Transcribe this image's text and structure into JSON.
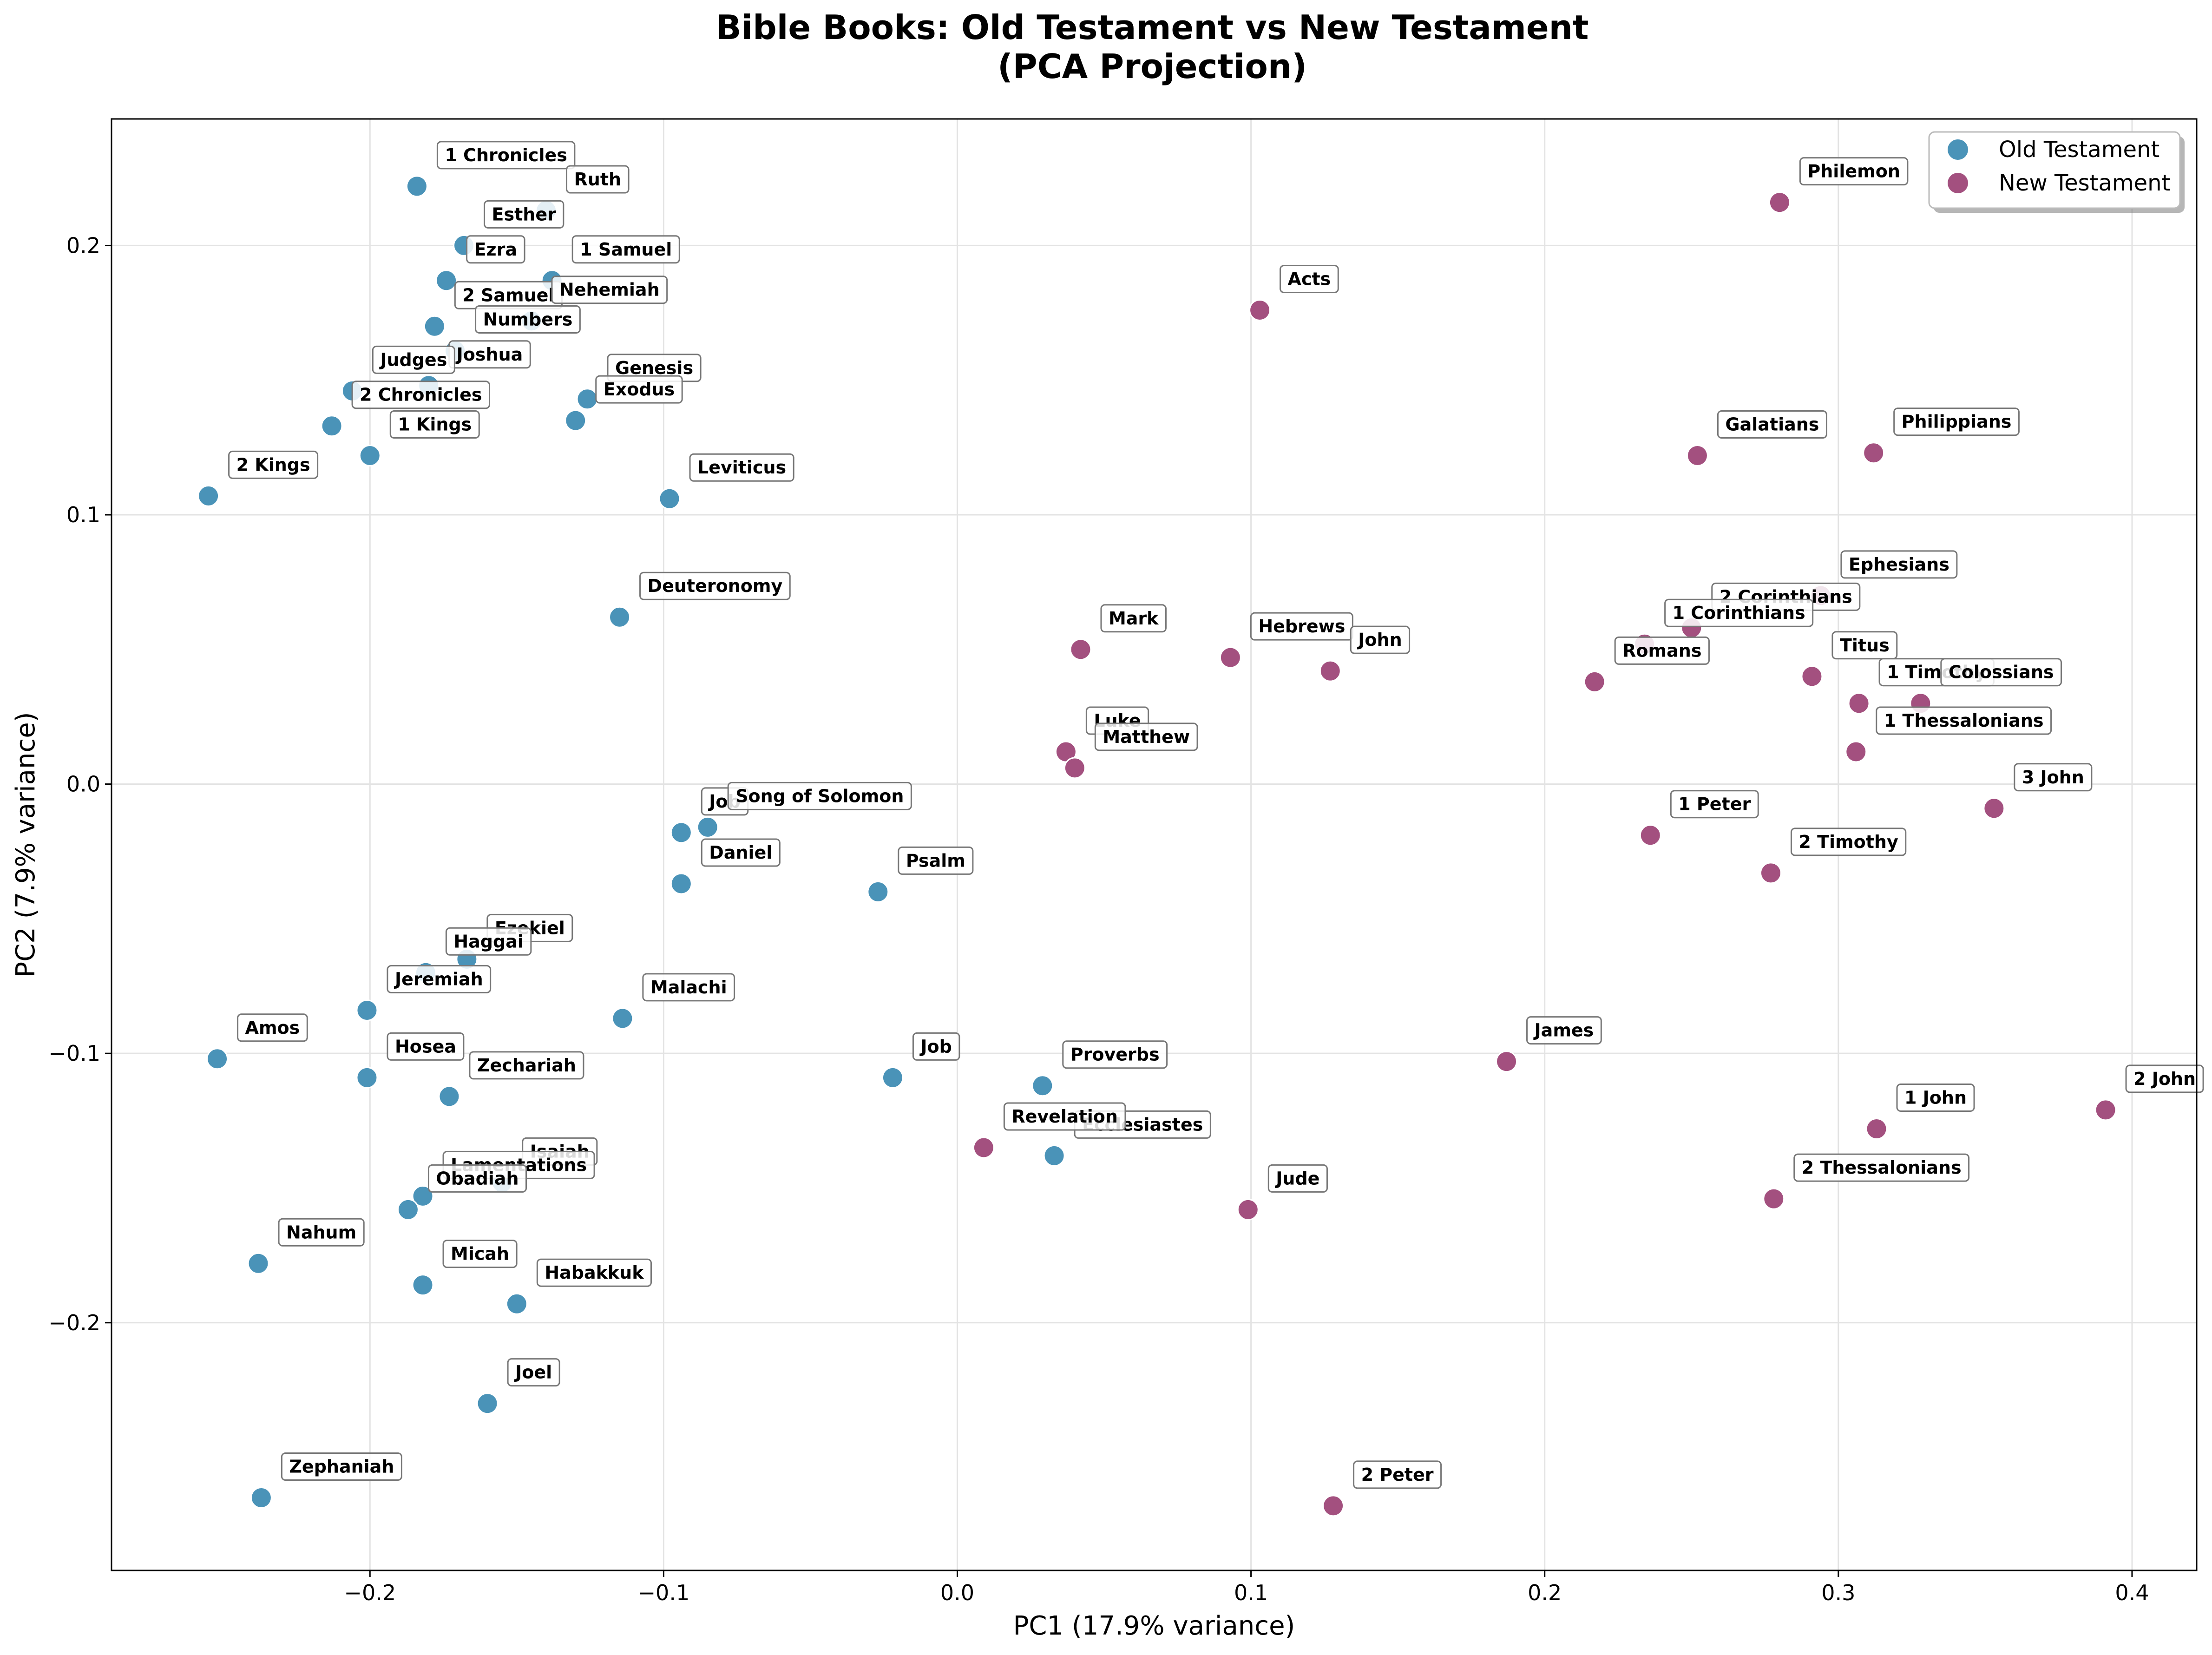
{
  "chart_data": {
    "type": "scatter",
    "title": "Bible Books: Old Testament vs New Testament",
    "subtitle": "(PCA Projection)",
    "xlabel": "PC1 (17.9% variance)",
    "ylabel": "PC2 (7.9% variance)",
    "xlim": [
      -0.288,
      0.422
    ],
    "ylim": [
      -0.292,
      0.247
    ],
    "x_ticks": [
      -0.2,
      -0.1,
      0.0,
      0.1,
      0.2,
      0.3,
      0.4
    ],
    "x_tick_labels": [
      "−0.2",
      "−0.1",
      "0.0",
      "0.1",
      "0.2",
      "0.3",
      "0.4"
    ],
    "y_ticks": [
      -0.2,
      -0.1,
      0.0,
      0.1,
      0.2
    ],
    "y_tick_labels": [
      "−0.2",
      "−0.1",
      "0.0",
      "0.1",
      "0.2"
    ],
    "grid": true,
    "legend_position": "top-right",
    "series": [
      {
        "name": "Old Testament",
        "color": "#4a93b8",
        "points": [
          {
            "label": "1 Chronicles",
            "x": -0.184,
            "y": 0.222
          },
          {
            "label": "Ruth",
            "x": -0.14,
            "y": 0.213
          },
          {
            "label": "Esther",
            "x": -0.168,
            "y": 0.2
          },
          {
            "label": "Ezra",
            "x": -0.174,
            "y": 0.187
          },
          {
            "label": "1 Samuel",
            "x": -0.138,
            "y": 0.187
          },
          {
            "label": "2 Samuel",
            "x": -0.178,
            "y": 0.17
          },
          {
            "label": "Nehemiah",
            "x": -0.145,
            "y": 0.172
          },
          {
            "label": "Numbers",
            "x": -0.171,
            "y": 0.161
          },
          {
            "label": "Joshua",
            "x": -0.18,
            "y": 0.148
          },
          {
            "label": "Judges",
            "x": -0.206,
            "y": 0.146
          },
          {
            "label": "Genesis",
            "x": -0.126,
            "y": 0.143
          },
          {
            "label": "2 Chronicles",
            "x": -0.213,
            "y": 0.133
          },
          {
            "label": "Exodus",
            "x": -0.13,
            "y": 0.135
          },
          {
            "label": "1 Kings",
            "x": -0.2,
            "y": 0.122
          },
          {
            "label": "2 Kings",
            "x": -0.255,
            "y": 0.107
          },
          {
            "label": "Leviticus",
            "x": -0.098,
            "y": 0.106
          },
          {
            "label": "Deuteronomy",
            "x": -0.115,
            "y": 0.062
          },
          {
            "label": "Job",
            "x": -0.094,
            "y": -0.018
          },
          {
            "label": "Song of Solomon",
            "x": -0.085,
            "y": -0.016
          },
          {
            "label": "Daniel",
            "x": -0.094,
            "y": -0.037
          },
          {
            "label": "Psalm",
            "x": -0.027,
            "y": -0.04
          },
          {
            "label": "Ezekiel",
            "x": -0.167,
            "y": -0.065
          },
          {
            "label": "Haggai",
            "x": -0.181,
            "y": -0.07
          },
          {
            "label": "Jeremiah",
            "x": -0.201,
            "y": -0.084
          },
          {
            "label": "Malachi",
            "x": -0.114,
            "y": -0.087
          },
          {
            "label": "Amos",
            "x": -0.252,
            "y": -0.102
          },
          {
            "label": "Hosea",
            "x": -0.201,
            "y": -0.109
          },
          {
            "label": "Zechariah",
            "x": -0.173,
            "y": -0.116
          },
          {
            "label": "Job",
            "x": -0.022,
            "y": -0.109
          },
          {
            "label": "Proverbs",
            "x": 0.029,
            "y": -0.112
          },
          {
            "label": "Ecclesiastes",
            "x": 0.033,
            "y": -0.138
          },
          {
            "label": "Isaiah",
            "x": -0.155,
            "y": -0.148
          },
          {
            "label": "Lamentations",
            "x": -0.182,
            "y": -0.153
          },
          {
            "label": "Obadiah",
            "x": -0.187,
            "y": -0.158
          },
          {
            "label": "Nahum",
            "x": -0.238,
            "y": -0.178
          },
          {
            "label": "Micah",
            "x": -0.182,
            "y": -0.186
          },
          {
            "label": "Habakkuk",
            "x": -0.15,
            "y": -0.193
          },
          {
            "label": "Joel",
            "x": -0.16,
            "y": -0.23
          },
          {
            "label": "Zephaniah",
            "x": -0.237,
            "y": -0.265
          }
        ]
      },
      {
        "name": "New Testament",
        "color": "#a3507f",
        "points": [
          {
            "label": "Philemon",
            "x": 0.28,
            "y": 0.216
          },
          {
            "label": "Acts",
            "x": 0.103,
            "y": 0.176
          },
          {
            "label": "Galatians",
            "x": 0.252,
            "y": 0.122
          },
          {
            "label": "Philippians",
            "x": 0.312,
            "y": 0.123
          },
          {
            "label": "Ephesians",
            "x": 0.294,
            "y": 0.07
          },
          {
            "label": "2 Corinthians",
            "x": 0.25,
            "y": 0.058
          },
          {
            "label": "1 Corinthians",
            "x": 0.234,
            "y": 0.052
          },
          {
            "label": "Mark",
            "x": 0.042,
            "y": 0.05
          },
          {
            "label": "Hebrews",
            "x": 0.093,
            "y": 0.047
          },
          {
            "label": "John",
            "x": 0.127,
            "y": 0.042
          },
          {
            "label": "Romans",
            "x": 0.217,
            "y": 0.038
          },
          {
            "label": "Titus",
            "x": 0.291,
            "y": 0.04
          },
          {
            "label": "1 Timothy",
            "x": 0.307,
            "y": 0.03
          },
          {
            "label": "Colossians",
            "x": 0.328,
            "y": 0.03
          },
          {
            "label": "1 Thessalonians",
            "x": 0.306,
            "y": 0.012
          },
          {
            "label": "Luke",
            "x": 0.037,
            "y": 0.012
          },
          {
            "label": "Matthew",
            "x": 0.04,
            "y": 0.006
          },
          {
            "label": "3 John",
            "x": 0.353,
            "y": -0.009
          },
          {
            "label": "1 Peter",
            "x": 0.236,
            "y": -0.019
          },
          {
            "label": "2 Timothy",
            "x": 0.277,
            "y": -0.033
          },
          {
            "label": "James",
            "x": 0.187,
            "y": -0.103
          },
          {
            "label": "2 John",
            "x": 0.391,
            "y": -0.121
          },
          {
            "label": "1 John",
            "x": 0.313,
            "y": -0.128
          },
          {
            "label": "Revelation",
            "x": 0.009,
            "y": -0.135
          },
          {
            "label": "2 Thessalonians",
            "x": 0.278,
            "y": -0.154
          },
          {
            "label": "Jude",
            "x": 0.099,
            "y": -0.158
          },
          {
            "label": "2 Peter",
            "x": 0.128,
            "y": -0.268
          }
        ]
      }
    ]
  }
}
